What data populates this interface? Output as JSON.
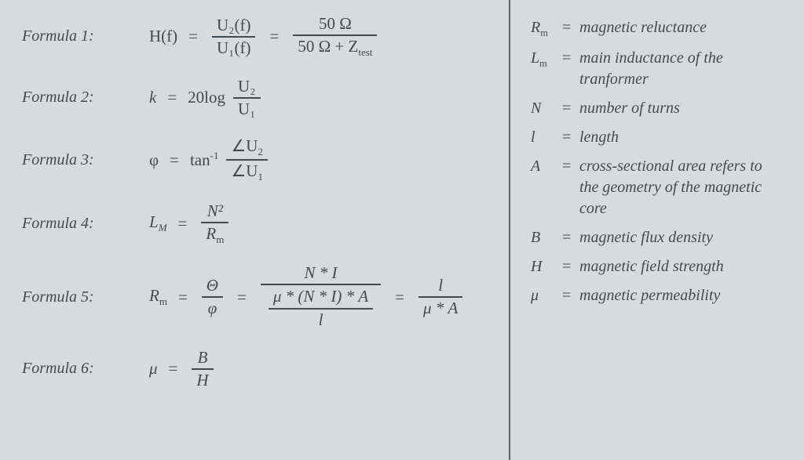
{
  "colors": {
    "background": "#d8dadb",
    "text": "#444b50",
    "rule": "#5a6167"
  },
  "typography": {
    "family": "Times New Roman",
    "label_fontsize_pt": 20,
    "formula_fontsize_pt": 21,
    "legend_fontsize_pt": 20
  },
  "formulas": {
    "f1": {
      "label": "Formula 1:",
      "lhs": "H(f)",
      "eq1": "=",
      "frac1_num": "U₂(f)",
      "frac1_den": "U₁(f)",
      "eq2": "=",
      "frac2_num": "50 Ω",
      "frac2_den_a": "50 Ω + Z",
      "frac2_den_sub": "test"
    },
    "f2": {
      "label": "Formula 2:",
      "lhs_a": "k",
      "op": "=",
      "lhs_b": "20log",
      "frac_num": "U₂",
      "frac_den": "U₁"
    },
    "f3": {
      "label": "Formula 3:",
      "lhs": "φ",
      "eq": "=",
      "fn": "tan",
      "fn_sup": "-1",
      "frac_num_pre": "∠U",
      "frac_num_sub": "2",
      "frac_den_pre": "∠U",
      "frac_den_sub": "1"
    },
    "f4": {
      "label": "Formula 4:",
      "lhs": "L",
      "lhs_sub": "M",
      "eq": "=",
      "num": "N²",
      "den": "R",
      "den_sub": "m"
    },
    "f5": {
      "label": "Formula 5:",
      "lhs": "R",
      "lhs_sub": "m",
      "eq1": "=",
      "frac1_num": "Θ",
      "frac1_den": "φ",
      "eq2": "=",
      "mid_num": "N * I",
      "mid_den_top": "μ * (N * I) * A",
      "mid_den_bot": "l",
      "eq3": "=",
      "frac3_num": "l",
      "frac3_den": "μ * A"
    },
    "f6": {
      "label": "Formula 6:",
      "lhs": "μ",
      "eq": "=",
      "num": "B",
      "den": "H"
    }
  },
  "legend": {
    "rm_sym": "R",
    "rm_sub": "m",
    "rm_def": "magnetic reluctance",
    "lm_sym": "L",
    "lm_sub": "m",
    "lm_def": "main inductance of the tranformer",
    "n_sym": "N",
    "n_def": "number of turns",
    "l_sym": "l",
    "l_def": "length",
    "a_sym": "A",
    "a_def": "cross-sectional area refers to the geometry of the magnetic core",
    "b_sym": "B",
    "b_def": "magnetic flux density",
    "h_sym": "H",
    "h_def": "magnetic field strength",
    "mu_sym": "μ",
    "mu_def": "magnetic permeability",
    "eq": "="
  }
}
